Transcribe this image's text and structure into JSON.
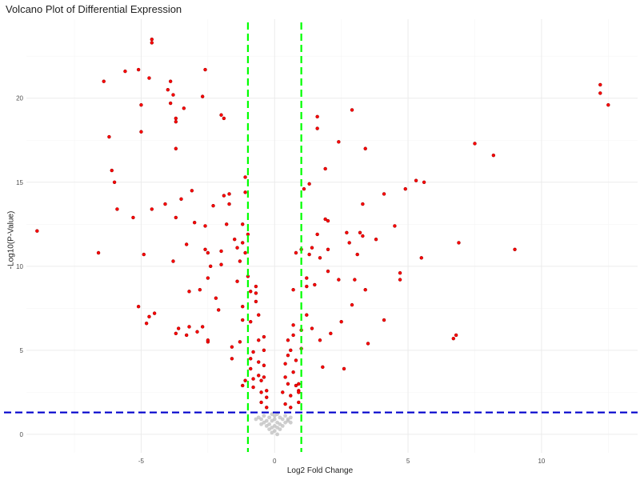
{
  "chart_data": {
    "type": "scatter",
    "title": "Volcano Plot of Differential Expression",
    "xlabel": "Log2 Fold Change",
    "ylabel": "-Log10(P-Value)",
    "xlim": [
      -9.3,
      13.6
    ],
    "ylim": [
      -1.1,
      24.7
    ],
    "x_ticks": [
      -5,
      0,
      5,
      10
    ],
    "y_ticks": [
      0,
      5,
      10,
      15,
      20
    ],
    "grid": true,
    "thresholds": {
      "log2fc": [
        -1,
        1
      ],
      "neg_log10_p": 1.3
    },
    "colors": {
      "significant": "#ff0000",
      "nonsignificant": "#bebebe",
      "fc_threshold_line": "#00ff00",
      "p_threshold_line": "#0000cc",
      "grid": "#ebebeb"
    },
    "series": [
      {
        "points": [
          [
            -8.9,
            12.1
          ],
          [
            -6.4,
            21.0
          ],
          [
            -6.6,
            10.8
          ],
          [
            -6.2,
            17.7
          ],
          [
            -6.1,
            15.7
          ],
          [
            -6.0,
            15.0
          ],
          [
            -5.9,
            13.4
          ],
          [
            -5.6,
            21.6
          ],
          [
            -5.3,
            12.9
          ],
          [
            -5.1,
            21.7
          ],
          [
            -5.0,
            19.6
          ],
          [
            -5.0,
            18.0
          ],
          [
            -4.9,
            10.7
          ],
          [
            -4.8,
            6.6
          ],
          [
            -5.1,
            7.6
          ],
          [
            -4.7,
            7.0
          ],
          [
            -4.7,
            21.2
          ],
          [
            -4.5,
            7.2
          ],
          [
            -4.6,
            23.3
          ],
          [
            -4.6,
            23.5
          ],
          [
            -4.6,
            13.4
          ],
          [
            -4.1,
            13.7
          ],
          [
            -4.0,
            20.5
          ],
          [
            -3.9,
            21.0
          ],
          [
            -3.9,
            19.7
          ],
          [
            -3.8,
            20.2
          ],
          [
            -3.7,
            18.8
          ],
          [
            -3.7,
            18.6
          ],
          [
            -3.7,
            17.0
          ],
          [
            -3.7,
            12.9
          ],
          [
            -3.8,
            10.3
          ],
          [
            -3.6,
            6.3
          ],
          [
            -3.7,
            6.0
          ],
          [
            -3.5,
            14.0
          ],
          [
            -3.4,
            19.4
          ],
          [
            -3.3,
            11.3
          ],
          [
            -3.2,
            8.5
          ],
          [
            -3.2,
            6.4
          ],
          [
            -3.3,
            5.9
          ],
          [
            -3.1,
            14.5
          ],
          [
            -3.0,
            12.6
          ],
          [
            -2.8,
            8.6
          ],
          [
            -2.9,
            6.1
          ],
          [
            -2.7,
            20.1
          ],
          [
            -2.6,
            21.7
          ],
          [
            -2.5,
            5.5
          ],
          [
            -2.5,
            5.6
          ],
          [
            -2.6,
            11.0
          ],
          [
            -2.6,
            12.4
          ],
          [
            -2.7,
            6.4
          ],
          [
            -2.5,
            9.3
          ],
          [
            -2.5,
            10.8
          ],
          [
            -2.4,
            10.0
          ],
          [
            -2.3,
            13.6
          ],
          [
            -2.2,
            8.1
          ],
          [
            -2.1,
            7.4
          ],
          [
            -2.0,
            19.0
          ],
          [
            -2.0,
            10.9
          ],
          [
            -2.0,
            10.1
          ],
          [
            -1.9,
            18.8
          ],
          [
            -1.9,
            14.2
          ],
          [
            -1.8,
            12.5
          ],
          [
            -1.7,
            14.3
          ],
          [
            -1.6,
            5.2
          ],
          [
            -1.6,
            4.5
          ],
          [
            -1.7,
            13.7
          ],
          [
            -1.5,
            11.6
          ],
          [
            -1.4,
            11.1
          ],
          [
            -1.4,
            9.1
          ],
          [
            -1.3,
            10.3
          ],
          [
            -1.3,
            5.5
          ],
          [
            -1.2,
            12.5
          ],
          [
            -1.2,
            11.4
          ],
          [
            -1.2,
            7.6
          ],
          [
            -1.2,
            6.8
          ],
          [
            -1.2,
            2.9
          ],
          [
            -1.1,
            3.2
          ],
          [
            -1.1,
            15.3
          ],
          [
            -1.1,
            14.4
          ],
          [
            -1.1,
            10.8
          ],
          [
            -1.0,
            11.9
          ],
          [
            -1.0,
            9.4
          ],
          [
            -0.9,
            8.5
          ],
          [
            -0.9,
            6.7
          ],
          [
            -0.9,
            4.5
          ],
          [
            -0.9,
            3.9
          ],
          [
            -0.8,
            4.9
          ],
          [
            -0.8,
            3.3
          ],
          [
            -0.8,
            2.8
          ],
          [
            -0.7,
            8.8
          ],
          [
            -0.7,
            8.4
          ],
          [
            -0.7,
            7.9
          ],
          [
            -0.6,
            7.1
          ],
          [
            -0.6,
            5.6
          ],
          [
            -0.6,
            4.3
          ],
          [
            -0.6,
            3.5
          ],
          [
            -0.5,
            3.2
          ],
          [
            -0.5,
            2.5
          ],
          [
            -0.5,
            1.9
          ],
          [
            -0.4,
            5.8
          ],
          [
            -0.4,
            5.0
          ],
          [
            -0.4,
            4.1
          ],
          [
            -0.4,
            3.4
          ],
          [
            -0.3,
            2.6
          ],
          [
            -0.3,
            2.2
          ],
          [
            -0.3,
            1.6
          ],
          [
            0.3,
            2.5
          ],
          [
            0.4,
            3.4
          ],
          [
            0.4,
            4.2
          ],
          [
            0.4,
            1.8
          ],
          [
            0.5,
            5.6
          ],
          [
            0.5,
            4.7
          ],
          [
            0.5,
            3.0
          ],
          [
            0.6,
            5.0
          ],
          [
            0.6,
            2.3
          ],
          [
            0.6,
            1.6
          ],
          [
            0.7,
            6.5
          ],
          [
            0.7,
            8.6
          ],
          [
            0.7,
            5.9
          ],
          [
            0.7,
            3.7
          ],
          [
            0.8,
            10.8
          ],
          [
            0.8,
            4.4
          ],
          [
            0.8,
            2.9
          ],
          [
            0.9,
            2.6
          ],
          [
            0.9,
            2.5
          ],
          [
            0.9,
            1.9
          ],
          [
            0.9,
            3.0
          ],
          [
            1.0,
            5.1
          ],
          [
            1.0,
            6.2
          ],
          [
            1.0,
            11.0
          ],
          [
            1.1,
            14.6
          ],
          [
            1.2,
            9.3
          ],
          [
            1.2,
            8.8
          ],
          [
            1.2,
            7.1
          ],
          [
            1.3,
            14.9
          ],
          [
            1.3,
            10.7
          ],
          [
            1.4,
            6.3
          ],
          [
            1.4,
            11.1
          ],
          [
            1.5,
            8.9
          ],
          [
            1.6,
            18.9
          ],
          [
            1.6,
            18.2
          ],
          [
            1.6,
            11.9
          ],
          [
            1.7,
            10.5
          ],
          [
            1.7,
            5.6
          ],
          [
            1.8,
            4.0
          ],
          [
            1.9,
            15.8
          ],
          [
            1.9,
            12.8
          ],
          [
            2.0,
            12.7
          ],
          [
            2.0,
            11.0
          ],
          [
            2.0,
            9.7
          ],
          [
            2.1,
            6.0
          ],
          [
            2.4,
            17.4
          ],
          [
            2.4,
            9.2
          ],
          [
            2.5,
            6.7
          ],
          [
            2.6,
            3.9
          ],
          [
            2.7,
            12.0
          ],
          [
            2.8,
            11.4
          ],
          [
            2.9,
            19.3
          ],
          [
            2.9,
            7.7
          ],
          [
            3.0,
            9.2
          ],
          [
            3.1,
            10.7
          ],
          [
            3.2,
            12.0
          ],
          [
            3.3,
            13.7
          ],
          [
            3.3,
            11.8
          ],
          [
            3.4,
            17.0
          ],
          [
            3.4,
            8.6
          ],
          [
            3.5,
            5.4
          ],
          [
            3.8,
            11.6
          ],
          [
            4.1,
            14.3
          ],
          [
            4.1,
            6.8
          ],
          [
            4.5,
            12.4
          ],
          [
            4.7,
            9.6
          ],
          [
            4.7,
            9.2
          ],
          [
            4.9,
            14.6
          ],
          [
            5.3,
            15.1
          ],
          [
            5.5,
            10.5
          ],
          [
            5.6,
            15.0
          ],
          [
            6.7,
            5.7
          ],
          [
            6.8,
            5.9
          ],
          [
            6.9,
            11.4
          ],
          [
            7.5,
            17.3
          ],
          [
            8.2,
            16.6
          ],
          [
            9.0,
            11.0
          ],
          [
            12.2,
            20.8
          ],
          [
            12.2,
            20.3
          ],
          [
            12.5,
            19.6
          ]
        ]
      },
      {
        "points": [
          [
            -0.6,
            1.0
          ],
          [
            -0.5,
            0.9
          ],
          [
            -0.5,
            0.6
          ],
          [
            -0.4,
            1.1
          ],
          [
            -0.4,
            0.7
          ],
          [
            -0.3,
            0.8
          ],
          [
            -0.3,
            0.5
          ],
          [
            -0.2,
            1.0
          ],
          [
            -0.2,
            0.6
          ],
          [
            -0.2,
            0.3
          ],
          [
            -0.1,
            1.2
          ],
          [
            -0.1,
            0.8
          ],
          [
            -0.1,
            0.4
          ],
          [
            -0.1,
            0.1
          ],
          [
            0.0,
            1.1
          ],
          [
            0.0,
            0.9
          ],
          [
            0.0,
            0.5
          ],
          [
            0.0,
            0.2
          ],
          [
            0.1,
            1.2
          ],
          [
            0.1,
            0.7
          ],
          [
            0.1,
            0.4
          ],
          [
            0.1,
            0.0
          ],
          [
            0.2,
            1.0
          ],
          [
            0.2,
            0.6
          ],
          [
            0.2,
            0.3
          ],
          [
            0.3,
            0.9
          ],
          [
            0.3,
            0.5
          ],
          [
            0.4,
            1.1
          ],
          [
            0.4,
            0.7
          ],
          [
            0.5,
            0.9
          ],
          [
            0.5,
            0.8
          ],
          [
            0.6,
            1.0
          ],
          [
            -0.7,
            0.9
          ],
          [
            0.6,
            0.7
          ]
        ]
      }
    ]
  }
}
